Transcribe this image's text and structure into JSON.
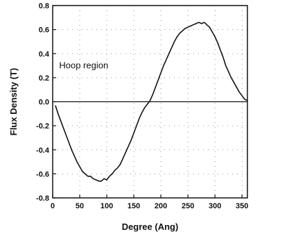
{
  "chart_data": {
    "type": "line",
    "title": "",
    "xlabel": "Degree (Ang)",
    "ylabel": "Flux Density (T)",
    "xlim": [
      0,
      360
    ],
    "ylim": [
      -0.8,
      0.8
    ],
    "x_ticks": [
      0,
      50,
      100,
      150,
      200,
      250,
      300,
      350
    ],
    "y_ticks": [
      -0.8,
      -0.6,
      -0.4,
      -0.2,
      0.0,
      0.2,
      0.4,
      0.6,
      0.8
    ],
    "x_tick_labels": [
      "0",
      "50",
      "100",
      "150",
      "200",
      "250",
      "300",
      "350"
    ],
    "y_tick_labels": [
      "-0.8",
      "-0.6",
      "-0.4",
      "-0.2",
      "0.0",
      "0.2",
      "0.4",
      "0.6",
      "0.8"
    ],
    "grid": "dotted",
    "annotation": "Hoop region",
    "series": [
      {
        "color": "#111111",
        "x": [
          5,
          10,
          15,
          20,
          25,
          30,
          35,
          40,
          45,
          50,
          55,
          60,
          65,
          70,
          75,
          80,
          85,
          90,
          95,
          100,
          105,
          110,
          115,
          120,
          125,
          130,
          135,
          140,
          145,
          150,
          155,
          160,
          165,
          170,
          175,
          180,
          185,
          190,
          195,
          200,
          205,
          210,
          215,
          220,
          225,
          230,
          235,
          240,
          245,
          250,
          255,
          260,
          265,
          270,
          275,
          280,
          285,
          290,
          295,
          300,
          305,
          310,
          315,
          320,
          325,
          330,
          335,
          340,
          345,
          350,
          355,
          360
        ],
        "y": [
          -0.03,
          -0.1,
          -0.16,
          -0.22,
          -0.28,
          -0.34,
          -0.4,
          -0.45,
          -0.5,
          -0.54,
          -0.58,
          -0.6,
          -0.62,
          -0.62,
          -0.64,
          -0.65,
          -0.66,
          -0.66,
          -0.64,
          -0.65,
          -0.62,
          -0.6,
          -0.57,
          -0.55,
          -0.52,
          -0.47,
          -0.42,
          -0.37,
          -0.32,
          -0.26,
          -0.2,
          -0.14,
          -0.09,
          -0.05,
          -0.02,
          0.01,
          0.06,
          0.12,
          0.18,
          0.24,
          0.3,
          0.35,
          0.4,
          0.45,
          0.5,
          0.54,
          0.57,
          0.59,
          0.61,
          0.62,
          0.63,
          0.64,
          0.65,
          0.66,
          0.65,
          0.66,
          0.64,
          0.62,
          0.58,
          0.54,
          0.49,
          0.43,
          0.37,
          0.3,
          0.25,
          0.2,
          0.16,
          0.12,
          0.08,
          0.05,
          0.02,
          0.01
        ]
      }
    ]
  }
}
